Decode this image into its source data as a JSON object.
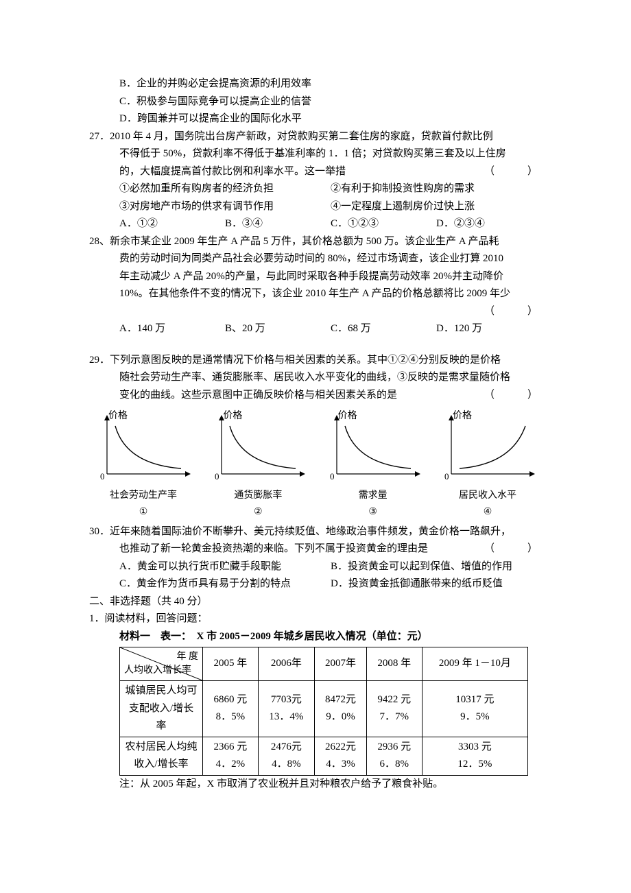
{
  "q26_options": {
    "b": "B．企业的并购必定会提高资源的利用效率",
    "c": "C．积极参与国际竞争可以提高企业的信誉",
    "d": "D．跨国兼并可以提高企业的国际化水平"
  },
  "q27": {
    "stem_l1": "27．2010 年 4 月，国务院出台房产新政，对贷款购买第二套住房的家庭，贷款首付款比例",
    "stem_l2": "不得低于 50%，贷款利率不得低于基准利率的 1．1 倍；对贷款购买第三套及以上住房",
    "stem_l3": "的，大幅度提高首付款比例和利率水平。这一举措",
    "stems": {
      "s1": "①必然加重所有购房者的经济负担",
      "s2": "②有利于抑制投资性购房的需求",
      "s3": "③对房地产市场的供求有调节作用",
      "s4": "④一定程度上遏制房价过快上涨"
    },
    "opts": {
      "a": "A．①②",
      "b": "B．③④",
      "c": "C．①②③",
      "d": "D．②③④"
    },
    "bracket": "（　　）"
  },
  "q28": {
    "l1": "28、新余市某企业 2009 年生产 A 产品 5 万件，其价格总额为 500 万。该企业生产 A 产品耗",
    "l2": "费的劳动时间为同类产品社会必要劳动时间的 80%，经过市场调查，该企业打算 2010",
    "l3": "年主动减少 A 产品 20%的产量，与此同时采取各种手段提高劳动效率 20%并主动降价",
    "l4": "10%。在其他条件不变的情况下，该企业 2010 年生产 A 产品的价格总额将比 2009 年少",
    "opts": {
      "a": "A．140 万",
      "b": "B、20 万",
      "c": "C．68 万",
      "d": "D．120 万"
    },
    "bracket": "（　　）"
  },
  "q29": {
    "l1": "29．下列示意图反映的是通常情况下价格与相关因素的关系。其中①②④分别反映的是价格",
    "l2": "随社会劳动生产率、通货膨胀率、居民收入水平变化的曲线，③反映的是需求量随价格",
    "l3": "变化的曲线。这些示意图中正确反映价格与相关因素关系的是",
    "bracket": "（　　）",
    "charts": [
      {
        "ylabel": "价格",
        "xlabel": "社会劳动生产率",
        "num": "①",
        "curve": "down"
      },
      {
        "ylabel": "价格",
        "xlabel": "通货膨胀率",
        "num": "②",
        "curve": "down"
      },
      {
        "ylabel": "价格",
        "xlabel": "需求量",
        "num": "③",
        "curve": "down"
      },
      {
        "ylabel": "价格",
        "xlabel": "居民收入水平",
        "num": "④",
        "curve": "up"
      }
    ],
    "axis_color": "#000000",
    "curve_color": "#000000",
    "curve_width": 1.4,
    "axis_width": 1.2
  },
  "q30": {
    "l1": "30．近年来随着国际油价不断攀升、美元持续贬值、地缘政治事件频发，黄金价格一路飙升，",
    "l2": "也推动了新一轮黄金投资热潮的来临。下列不属于投资黄金的理由是",
    "opts": {
      "a": "A．黄金可以执行货币贮藏手段职能",
      "b": "B．投资黄金可以起到保值、增值的作用",
      "c": "C．黄金作为货币具有易于分割的特点",
      "d": "D．投资黄金抵御通胀带来的纸币贬值"
    },
    "bracket": "（　　）"
  },
  "section2_title": "二、非选择题（共 40 分）",
  "nq1_title": "1．阅读材料，回答问题：",
  "material_title": "材料一　表一：　X 市 2005－2009 年城乡居民收入情况（单位：元）",
  "table": {
    "diag_top": "年 度",
    "diag_bottom": "人均收入增长率",
    "cols": [
      "2005 年",
      "2006年",
      "2007年",
      "2008 年",
      "2009 年 1－10月"
    ],
    "rows": [
      {
        "label": "城镇居民人均可支配收入/增长率",
        "cells": [
          "6860 元\n8．5%",
          "7703元\n13．4%",
          "8472元\n9．0%",
          "9422 元\n7．7%",
          "10317 元\n9．5%"
        ]
      },
      {
        "label": "农村居民人均纯收入/增长率",
        "cells": [
          "2366 元\n4．2%",
          "2476元\n4．8%",
          "2622元\n4．3%",
          "2936 元\n6．8%",
          "3303 元\n12．5%"
        ]
      }
    ],
    "border_color": "#000000"
  },
  "table_note": "注：从 2005 年起，X 市取消了农业税并且对种粮农户给予了粮食补贴。"
}
